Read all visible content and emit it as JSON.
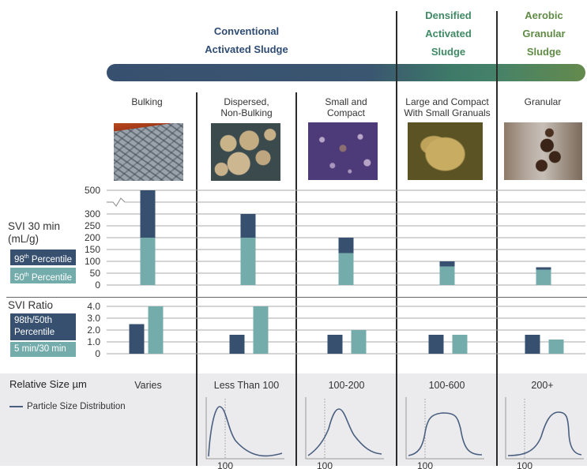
{
  "headers": {
    "conventional": [
      "Conventional",
      "Activated Sludge"
    ],
    "densified": [
      "Densified",
      "Activated",
      "Sludge"
    ],
    "aerobic": [
      "Aerobic",
      "Granular",
      "Sludge"
    ]
  },
  "colors": {
    "p98": "#37506f",
    "p50": "#74acac",
    "header_blue": "#2f4d74",
    "header_green": "#3f8a64",
    "gray_band": "#ebebed",
    "curve": "#4a5f80"
  },
  "columns": [
    {
      "label": [
        "Bulking"
      ],
      "image": "bulking-micrograph",
      "size": "Varies"
    },
    {
      "label": [
        "Dispersed,",
        "Non-Bulking"
      ],
      "image": "dispersed-micrograph",
      "size": "Less Than 100"
    },
    {
      "label": [
        "Small and",
        "Compact"
      ],
      "image": "small-compact-micrograph",
      "size": "100-200"
    },
    {
      "label": [
        "Large and Compact",
        "With Small Granuals"
      ],
      "image": "large-compact-micrograph",
      "size": "100-600"
    },
    {
      "label": [
        "Granular"
      ],
      "image": "granular-photo",
      "size": "200+"
    }
  ],
  "svi30": {
    "title": [
      "SVI 30 min",
      "(mL/g)"
    ],
    "legend_98": {
      "base": "98",
      "sup": "th",
      "rest": " Percentile"
    },
    "legend_50": {
      "base": "50",
      "sup": "th",
      "rest": " Percentile"
    }
  },
  "ratio": {
    "title": "SVI Ratio",
    "legend_a": [
      "98th/50th",
      "Percentile"
    ],
    "legend_b": "5 min/30 min"
  },
  "relative_size": {
    "title": "Relative Size µm",
    "legend": "Particle Size Distribution",
    "axis_tick": "100"
  },
  "chart_data": [
    {
      "type": "bar",
      "title": "SVI 30 min (mL/g)",
      "stacked": true,
      "categories": [
        "Bulking",
        "Dispersed, Non-Bulking",
        "Small and Compact",
        "Large and Compact With Small Granuals",
        "Granular"
      ],
      "series": [
        {
          "name": "50th Percentile",
          "values": [
            200,
            200,
            135,
            78,
            65
          ]
        },
        {
          "name": "98th Percentile",
          "values": [
            500,
            300,
            200,
            100,
            75
          ]
        }
      ],
      "yticks": [
        "0",
        "50",
        "100",
        "150",
        "200",
        "250",
        "300",
        "500"
      ],
      "axis_break": "between 300 and 500",
      "ylim": [
        0,
        500
      ]
    },
    {
      "type": "bar",
      "title": "SVI Ratio",
      "categories": [
        "Bulking",
        "Dispersed, Non-Bulking",
        "Small and Compact",
        "Large and Compact With Small Granuals",
        "Granular"
      ],
      "series": [
        {
          "name": "98th/50th Percentile",
          "values": [
            2.5,
            1.6,
            1.6,
            1.6,
            1.6
          ]
        },
        {
          "name": "5 min/30 min",
          "values": [
            4.0,
            4.0,
            2.0,
            1.6,
            1.2
          ]
        }
      ],
      "yticks": [
        "0",
        "1.0",
        "2.0",
        "3.0",
        "4.0"
      ],
      "ylim": [
        0,
        4.0
      ]
    },
    {
      "type": "line",
      "title": "Particle Size Distribution",
      "reference_x": "100",
      "curves": [
        {
          "category": "Less Than 100",
          "shape": "peak-below-100"
        },
        {
          "category": "100-200",
          "shape": "peak-just-above-100"
        },
        {
          "category": "100-600",
          "shape": "plateau-100-to-600"
        },
        {
          "category": "200+",
          "shape": "plateau-above-200"
        }
      ]
    }
  ]
}
